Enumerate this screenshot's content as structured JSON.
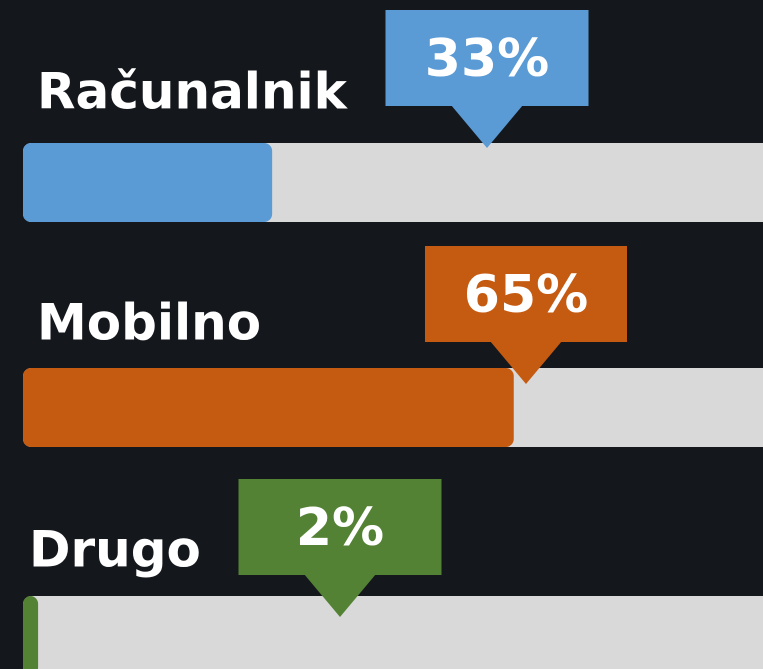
{
  "chart_data": {
    "type": "bar",
    "orientation": "horizontal",
    "categories": [
      "Računalnik",
      "Mobilno",
      "Drugo"
    ],
    "values": [
      33,
      65,
      2
    ],
    "value_labels": [
      "33%",
      "65%",
      "2%"
    ],
    "colors": [
      "#5b9bd5",
      "#c55a11",
      "#548235"
    ],
    "xlim": [
      0,
      100
    ]
  }
}
